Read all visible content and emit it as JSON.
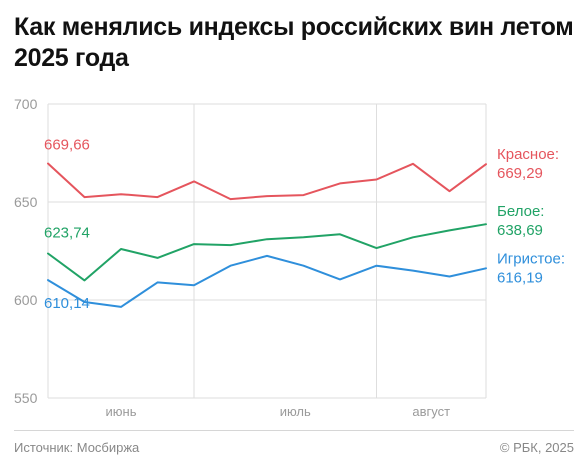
{
  "header": {
    "title": "Как менялись индексы российских вин летом 2025 года"
  },
  "footer": {
    "source": "Источник: Мосбиржа",
    "copyright": "© РБК, 2025"
  },
  "chart_data": {
    "type": "line",
    "title": "Как менялись индексы российских вин летом 2025 года",
    "xlabel": "",
    "ylabel": "",
    "ylim": [
      550,
      700
    ],
    "yticks": [
      "700",
      "650",
      "600",
      "550"
    ],
    "month_labels": [
      "июнь",
      "июль",
      "август"
    ],
    "grid": true,
    "series": [
      {
        "name": "Красное:",
        "color": "#e5555d",
        "start_label": "669,66",
        "end_label": "669,29",
        "values": [
          669.66,
          652.5,
          654,
          652.5,
          660.5,
          651.5,
          653,
          653.5,
          659.5,
          661.5,
          669.5,
          655.5,
          669.29
        ]
      },
      {
        "name": "Белое:",
        "color": "#21a366",
        "start_label": "623,74",
        "end_label": "638,69",
        "values": [
          623.74,
          610,
          626,
          621.5,
          628.5,
          628,
          631,
          632,
          633.5,
          626.5,
          632,
          635.5,
          638.69
        ]
      },
      {
        "name": "Игристое:",
        "color": "#2f8fdb",
        "start_label": "610,14",
        "end_label": "616,19",
        "values": [
          610.14,
          599,
          596.5,
          609,
          607.5,
          617.5,
          622.5,
          617.5,
          610.5,
          617.5,
          615,
          612,
          616.19
        ]
      }
    ]
  }
}
